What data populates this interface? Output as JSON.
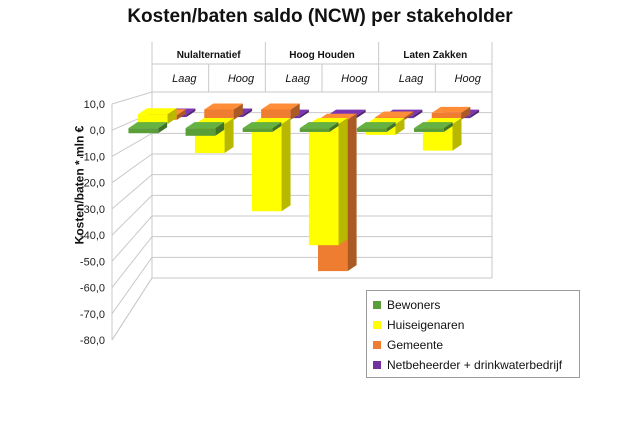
{
  "chart_data": {
    "type": "bar",
    "title": "Kosten/baten saldo (NCW) per stakeholder",
    "ylabel": "Kosten/baten * mln €",
    "ylim": [
      -80,
      10
    ],
    "yticks": [
      "10,0",
      "0,0",
      "-10,0",
      "-20,0",
      "-30,0",
      "-40,0",
      "-50,0",
      "-60,0",
      "-70,0",
      "-80,0"
    ],
    "groups": [
      "Nulalternatief",
      "Hoog Houden",
      "Laten Zakken"
    ],
    "categories": [
      "Laag",
      "Hoog",
      "Laag",
      "Hoog",
      "Laag",
      "Hoog"
    ],
    "series": [
      {
        "name": "Bewoners",
        "color": "#5a9e3a",
        "values": [
          -2.0,
          -3.0,
          -1.5,
          -1.5,
          -1.5,
          -1.5
        ]
      },
      {
        "name": "Huiseigenaren",
        "color": "#ffff00",
        "values": [
          4.0,
          -12.0,
          -36.0,
          -50.0,
          -4.5,
          -11.0
        ]
      },
      {
        "name": "Gemeente",
        "color": "#ee7d31",
        "values": [
          2.0,
          4.5,
          4.5,
          -66.0,
          1.0,
          3.0
        ]
      },
      {
        "name": "Netbeheerder + drinkwaterbedrijf",
        "color": "#7030a0",
        "values": [
          0.5,
          0.5,
          0.0,
          0.0,
          0.0,
          0.0
        ]
      }
    ],
    "grid": true,
    "legend_position": "bottom-right"
  }
}
